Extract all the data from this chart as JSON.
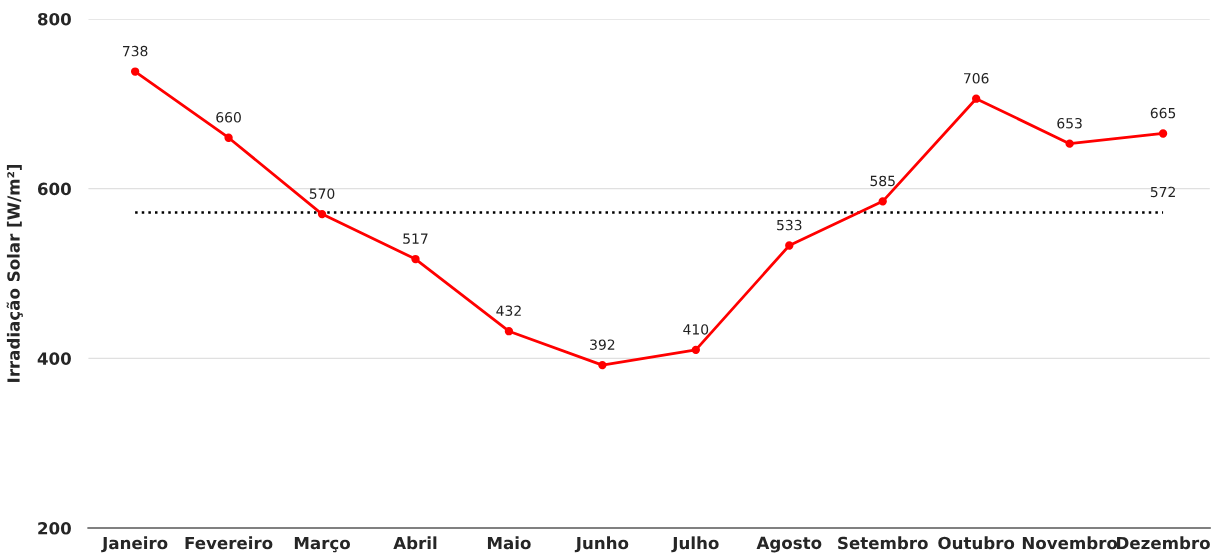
{
  "chart_data": {
    "type": "line",
    "categories": [
      "Janeiro",
      "Fevereiro",
      "Março",
      "Abril",
      "Maio",
      "Junho",
      "Julho",
      "Agosto",
      "Setembro",
      "Outubro",
      "Novembro",
      "Dezembro"
    ],
    "series": [
      {
        "color": "#ff0000",
        "values": [
          738,
          660,
          570,
          517,
          432,
          392,
          410,
          533,
          585,
          706,
          653,
          665
        ]
      }
    ],
    "ylabel": "Irradiação Solar [W/m²]",
    "ylim": [
      200,
      800
    ],
    "yticks": [
      200,
      400,
      600,
      800
    ],
    "grid": "y",
    "marker": "circle",
    "line_style": "solid",
    "data_labels": true,
    "ref_lines": [
      {
        "axis": "y",
        "value": 572,
        "label": "572",
        "color": "#000000",
        "line_style": "dotted"
      }
    ]
  }
}
